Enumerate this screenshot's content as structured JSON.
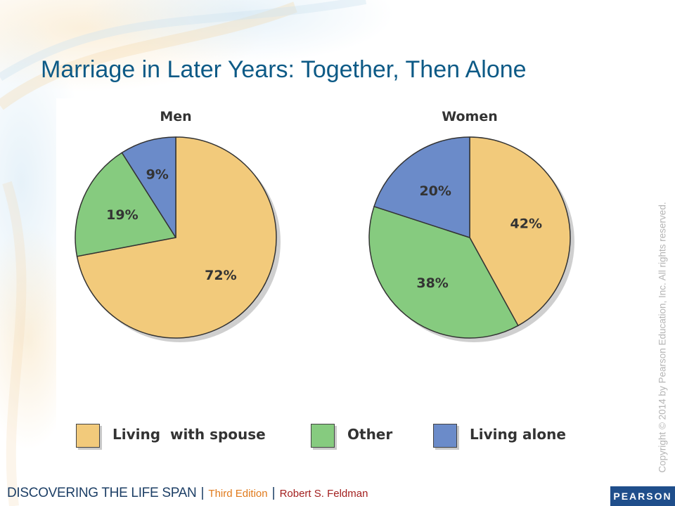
{
  "slide": {
    "title": "Marriage in Later Years: Together, Then Alone",
    "copyright": "Copyright © 2014 by Pearson Education, Inc. All rights reserved.",
    "footer": {
      "book_title": "DISCOVERING THE LIFE SPAN",
      "separator": "|",
      "edition": "Third Edition",
      "author": "Robert S. Feldman",
      "publisher_logo": "PEARSON"
    }
  },
  "colors": {
    "living_with_spouse": "#f2ca7b",
    "other": "#86cb7f",
    "living_alone": "#6b8bc9",
    "title": "#0d5a86"
  },
  "chart_data": [
    {
      "type": "pie",
      "title": "Men",
      "start_angle_deg": 0,
      "direction": "clockwise",
      "slices": [
        {
          "label": "Living  with spouse",
          "value": 72,
          "display": "72%",
          "color": "#f2ca7b"
        },
        {
          "label": "Other",
          "value": 19,
          "display": "19%",
          "color": "#86cb7f"
        },
        {
          "label": "Living alone",
          "value": 9,
          "display": "9%",
          "color": "#6b8bc9"
        }
      ]
    },
    {
      "type": "pie",
      "title": "Women",
      "start_angle_deg": 0,
      "direction": "clockwise",
      "slices": [
        {
          "label": "Living  with spouse",
          "value": 42,
          "display": "42%",
          "color": "#f2ca7b"
        },
        {
          "label": "Other",
          "value": 38,
          "display": "38%",
          "color": "#86cb7f"
        },
        {
          "label": "Living alone",
          "value": 20,
          "display": "20%",
          "color": "#6b8bc9"
        }
      ]
    }
  ],
  "legend": {
    "placement": "bottom",
    "items": [
      {
        "label": "Living  with spouse",
        "color": "#f2ca7b"
      },
      {
        "label": "Other",
        "color": "#86cb7f"
      },
      {
        "label": "Living alone",
        "color": "#6b8bc9"
      }
    ]
  }
}
